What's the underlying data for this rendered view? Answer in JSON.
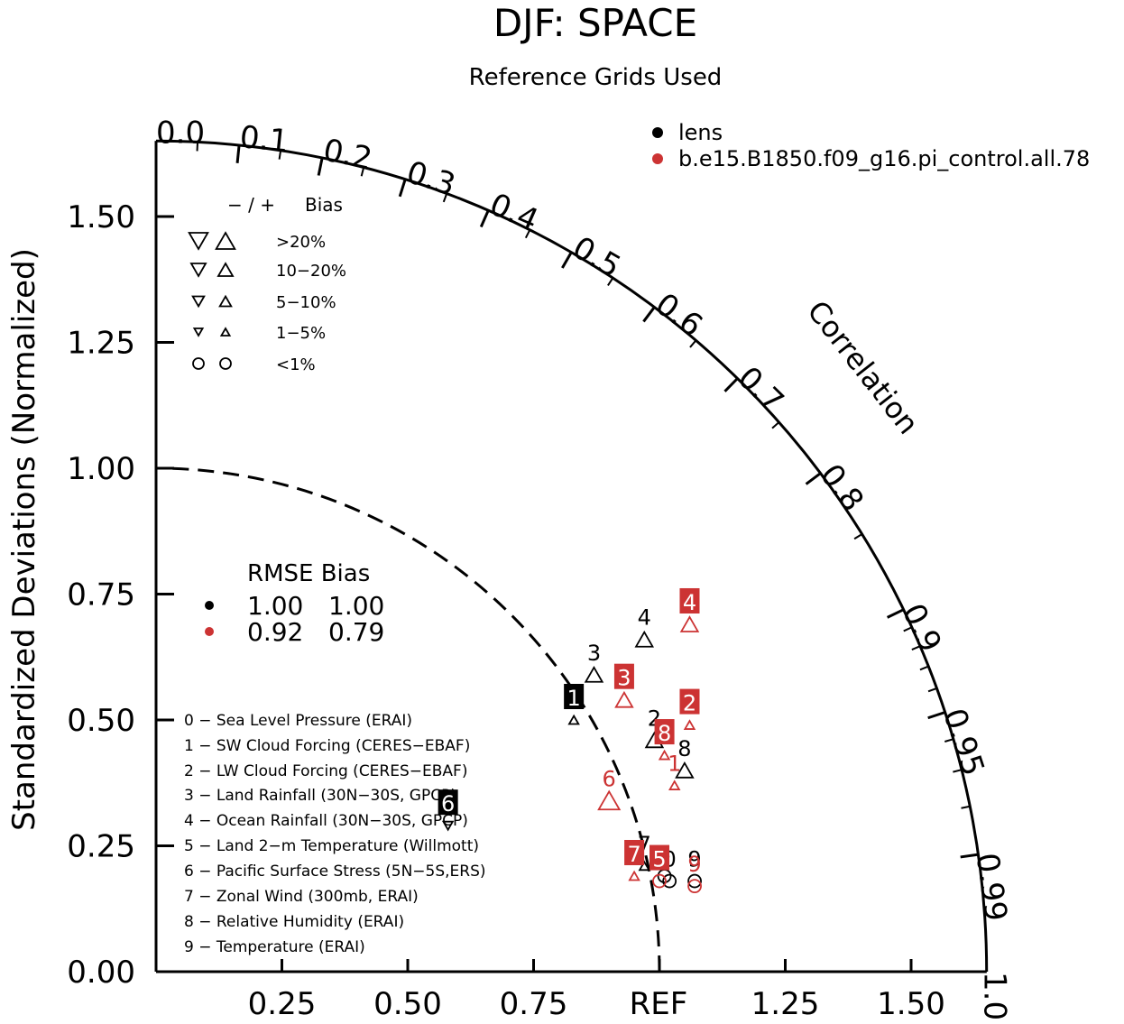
{
  "chart_data": {
    "type": "taylor",
    "title": "DJF: SPACE",
    "subtitle": "Reference Grids Used",
    "ylabel": "Standardized Deviations (Normalized)",
    "arc_label": "Correlation",
    "ref_label": "REF",
    "x_ticks": [
      "0.25",
      "0.50",
      "0.75",
      "1.25",
      "1.50"
    ],
    "y_ticks": [
      "0.00",
      "0.25",
      "0.50",
      "0.75",
      "1.00",
      "1.25",
      "1.50"
    ],
    "corr_ticks": [
      "0.0",
      "0.1",
      "0.2",
      "0.3",
      "0.4",
      "0.5",
      "0.6",
      "0.7",
      "0.8",
      "0.9",
      "0.95",
      "0.99",
      "1.0"
    ],
    "corr_values": [
      0.0,
      0.1,
      0.2,
      0.3,
      0.4,
      0.5,
      0.6,
      0.7,
      0.8,
      0.9,
      0.95,
      0.99,
      1.0
    ],
    "sd_max": 1.65,
    "legend": [
      {
        "name": "lens",
        "color": "#000000"
      },
      {
        "name": "b.e15.B1850.f09_g16.pi_control.all.78",
        "color": "#cc3333"
      }
    ],
    "bias_key": {
      "header_sign": "− / +",
      "header_label": "Bias",
      "rows": [
        ">20%",
        "10−20%",
        "5−10%",
        "1−5%",
        "<1%"
      ]
    },
    "summary": {
      "header": "RMSE Bias",
      "rows": [
        {
          "rmse": "1.00",
          "bias": "1.00",
          "color": "#000000"
        },
        {
          "rmse": "0.92",
          "bias": "0.79",
          "color": "#cc3333"
        }
      ]
    },
    "variables": [
      "0 − Sea Level Pressure (ERAI)",
      "1 − SW Cloud Forcing (CERES−EBAF)",
      "2 − LW Cloud Forcing (CERES−EBAF)",
      "3 − Land Rainfall (30N−30S, GPCP)",
      "4 − Ocean Rainfall (30N−30S, GPCP)",
      "5 − Land 2−m Temperature (Willmott)",
      "6 − Pacific Surface Stress (5N−5S,ERS)",
      "7 − Zonal Wind (300mb, ERAI)",
      "8 − Relative Humidity (ERAI)",
      "9 − Temperature (ERAI)"
    ],
    "series": [
      {
        "name": "lens",
        "color": "#000000",
        "points": [
          {
            "id": "0",
            "x": 1.02,
            "y": 0.18,
            "marker": "circle"
          },
          {
            "id": "1",
            "x": 0.83,
            "y": 0.5,
            "marker": "up-small",
            "boxed": true
          },
          {
            "id": "2",
            "x": 0.99,
            "y": 0.46,
            "marker": "up"
          },
          {
            "id": "3",
            "x": 0.87,
            "y": 0.59,
            "marker": "up"
          },
          {
            "id": "4",
            "x": 0.97,
            "y": 0.66,
            "marker": "up"
          },
          {
            "id": "5",
            "x": 1.01,
            "y": 0.19,
            "marker": "circle"
          },
          {
            "id": "6",
            "x": 0.58,
            "y": 0.29,
            "marker": "down-small",
            "boxed": true
          },
          {
            "id": "7",
            "x": 0.97,
            "y": 0.21,
            "marker": "up-small"
          },
          {
            "id": "8",
            "x": 1.05,
            "y": 0.4,
            "marker": "up"
          },
          {
            "id": "9",
            "x": 1.07,
            "y": 0.18,
            "marker": "circle"
          }
        ]
      },
      {
        "name": "b.e15.B1850.f09_g16.pi_control.all.78",
        "color": "#cc3333",
        "points": [
          {
            "id": "1",
            "x": 1.03,
            "y": 0.37,
            "marker": "up-small"
          },
          {
            "id": "2",
            "x": 1.06,
            "y": 0.49,
            "marker": "up-small",
            "boxed": true
          },
          {
            "id": "3",
            "x": 0.93,
            "y": 0.54,
            "marker": "up",
            "boxed": true
          },
          {
            "id": "4",
            "x": 1.06,
            "y": 0.69,
            "marker": "up",
            "boxed": true
          },
          {
            "id": "5",
            "x": 1.0,
            "y": 0.18,
            "marker": "circle",
            "boxed": true
          },
          {
            "id": "6",
            "x": 0.9,
            "y": 0.34,
            "marker": "up-large"
          },
          {
            "id": "7",
            "x": 0.95,
            "y": 0.19,
            "marker": "up-small",
            "boxed": true
          },
          {
            "id": "8",
            "x": 1.01,
            "y": 0.43,
            "marker": "up-small",
            "boxed": true
          },
          {
            "id": "9",
            "x": 1.07,
            "y": 0.17,
            "marker": "circle"
          }
        ]
      }
    ]
  }
}
